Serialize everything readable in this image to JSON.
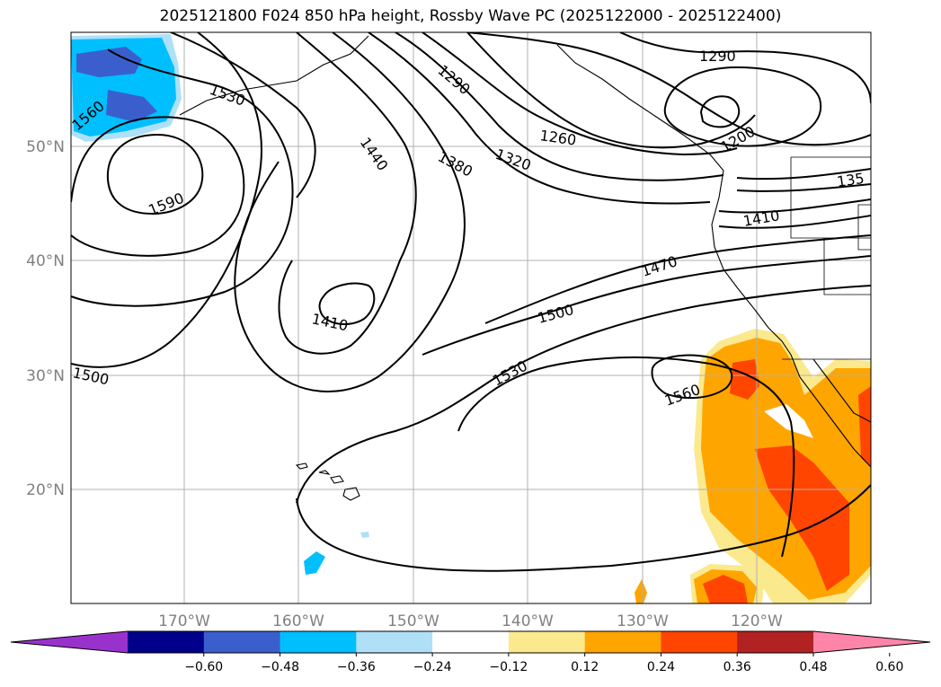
{
  "title": "2025121800 F024 850 hPa height, Rossby Wave PC (2025122000 - 2025122400)",
  "map": {
    "lat_labels": [
      "50°N",
      "40°N",
      "30°N",
      "20°N"
    ],
    "lon_labels": [
      "170°W",
      "160°W",
      "150°W",
      "140°W",
      "130°W",
      "120°W"
    ],
    "contour_labels": [
      "1530",
      "1560",
      "1590",
      "1440",
      "1380",
      "1290",
      "1320",
      "1260",
      "1290",
      "1200",
      "135",
      "1410",
      "1470",
      "1500",
      "1410",
      "1500",
      "1530",
      "1560"
    ],
    "colors": {
      "neg_strong": "#3050c8",
      "neg_mid": "#00bfff",
      "neg_weak": "#aee0f8",
      "pos_weak": "#fbe98e",
      "pos_mid": "#ffa500",
      "pos_strong": "#ff4500"
    }
  },
  "colorbar": {
    "ticks": [
      "−0.60",
      "−0.48",
      "−0.36",
      "−0.24",
      "−0.12",
      "0.12",
      "0.24",
      "0.36",
      "0.48",
      "0.60"
    ],
    "colors": [
      "#9932cc",
      "#00008b",
      "#3a5fcd",
      "#00bfff",
      "#b0e0f8",
      "#ffffff",
      "#fbe98e",
      "#ffa500",
      "#ff4500",
      "#b22222",
      "#ff85a8"
    ]
  }
}
